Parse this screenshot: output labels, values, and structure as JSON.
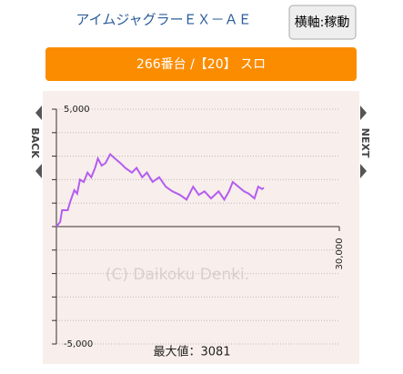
{
  "header": {
    "title": "アイムジャグラーＥＸ－ＡＥ",
    "button": "横軸:稼動"
  },
  "banner": "266番台 /【20】 スロ",
  "nav": {
    "back": "BACK",
    "next": "NEXT"
  },
  "chart_data": {
    "type": "line",
    "x": [
      0,
      400,
      600,
      1200,
      1500,
      1900,
      2200,
      2500,
      2900,
      3300,
      3700,
      4100,
      4400,
      4800,
      5200,
      5700,
      6200,
      6800,
      7300,
      8000,
      8500,
      9100,
      9600,
      10200,
      10900,
      11600,
      12300,
      13100,
      13800,
      14500,
      15100,
      15700,
      16400,
      17200,
      17800,
      18300,
      18700,
      19300,
      19900,
      20400,
      21000,
      21400,
      21800,
      22000
    ],
    "series": [
      {
        "color": "#b45cf0",
        "values": [
          0,
          200,
          700,
          700,
          1100,
          1550,
          1400,
          2000,
          1900,
          2300,
          2100,
          2500,
          2900,
          2600,
          2700,
          3081,
          2900,
          2700,
          2500,
          2300,
          2500,
          2100,
          2300,
          1900,
          2100,
          1700,
          1500,
          1350,
          1150,
          1700,
          1350,
          1500,
          1200,
          1500,
          1150,
          1500,
          1900,
          1700,
          1500,
          1400,
          1200,
          1700,
          1600,
          1650
        ]
      }
    ],
    "xlim": [
      0,
      30000
    ],
    "ylim": [
      -5000,
      5000
    ],
    "xticks": [
      {
        "value": 30000,
        "label": "30,000"
      }
    ],
    "yticks": [
      {
        "value": 5000,
        "label": "5,000"
      },
      {
        "value": -5000,
        "label": "-5,000"
      }
    ],
    "minor_yticks": [
      4000,
      3000,
      2000,
      1000,
      0,
      -1000,
      -2000,
      -3000,
      -4000
    ],
    "grid": true,
    "watermark": "(C) Daikoku Denki.",
    "annotation": "最大値：3081"
  }
}
